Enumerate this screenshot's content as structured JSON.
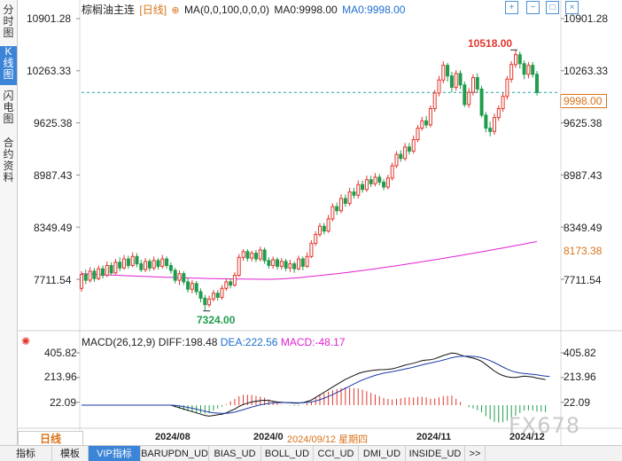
{
  "left_tabs": [
    {
      "label": "分时图",
      "active": false
    },
    {
      "label": "K线图",
      "active": true
    },
    {
      "label": "闪电图",
      "active": false
    },
    {
      "label": "合约资料",
      "active": false
    }
  ],
  "legend": {
    "title": "棕榈油主连",
    "period_tag": "[日线]",
    "ma_label": "MA(0,0,100,0,0,0)",
    "ma0_1": "MA0:9998.00",
    "ma0_2": "MA0:9998.00"
  },
  "top_icons": [
    "zoom-in-icon",
    "zoom-out-icon",
    "fullscreen-icon",
    "close-icon"
  ],
  "price_axis_left": [
    "10901.28",
    "10263.33",
    "9625.38",
    "8987.43",
    "8349.49",
    "7711.54"
  ],
  "price_axis_right": [
    "10901.28",
    "10263.33",
    "9625.38",
    "8987.43",
    "8349.49",
    "7711.54"
  ],
  "price_tags": {
    "last": "9998.00",
    "ma": "8173.38"
  },
  "annotations": {
    "high": "10518.00",
    "low": "7324.00"
  },
  "macd": {
    "title": "MACD(26,12,9)",
    "diff": "DIFF:198.48",
    "dea": "DEA:222.56",
    "macd": "MACD:-48.17",
    "axis": [
      "405.82",
      "213.96",
      "22.09"
    ]
  },
  "date_axis": {
    "labels": [
      "2024/08",
      "2024/0",
      "2024/11",
      "2024/12"
    ],
    "crosshair": "2024/09/12 星期四"
  },
  "period_button": "日线",
  "bottom_tabs": [
    "指标",
    "模板",
    "VIP指标",
    "BARUPDN_UD",
    "BIAS_UD",
    "BOLL_UD",
    "CCI_UD",
    "DMI_UD",
    "INSIDE_UD",
    ">>"
  ],
  "watermark": "FX678",
  "colors": {
    "up": "#e2352b",
    "down": "#1f9d4c",
    "ma": "#e020d0",
    "diff": "#111111",
    "dea": "#1a3aa8",
    "accent": "#3c84d8",
    "last_line": "#1fa0a8"
  },
  "chart_data": {
    "type": "candlestick",
    "title": "棕榈油主连 [日线]",
    "ylim": [
      7324,
      10901.28
    ],
    "price_ticks": [
      10901.28,
      10263.33,
      9625.38,
      8987.43,
      8349.49,
      7711.54
    ],
    "high": 10518,
    "low": 7324,
    "last": 9998,
    "ma_current": 8173.38,
    "x_labels": [
      "2024/08",
      "2024/0",
      "2024/11",
      "2024/12"
    ],
    "candles": [
      {
        "o": 7600,
        "c": 7770,
        "h": 7810,
        "l": 7560
      },
      {
        "o": 7770,
        "c": 7700,
        "h": 7830,
        "l": 7650
      },
      {
        "o": 7700,
        "c": 7810,
        "h": 7860,
        "l": 7670
      },
      {
        "o": 7810,
        "c": 7720,
        "h": 7850,
        "l": 7680
      },
      {
        "o": 7720,
        "c": 7840,
        "h": 7880,
        "l": 7700
      },
      {
        "o": 7840,
        "c": 7760,
        "h": 7880,
        "l": 7720
      },
      {
        "o": 7760,
        "c": 7880,
        "h": 7930,
        "l": 7740
      },
      {
        "o": 7880,
        "c": 7790,
        "h": 7920,
        "l": 7760
      },
      {
        "o": 7790,
        "c": 7920,
        "h": 7960,
        "l": 7770
      },
      {
        "o": 7920,
        "c": 7850,
        "h": 7980,
        "l": 7810
      },
      {
        "o": 7850,
        "c": 7960,
        "h": 8010,
        "l": 7830
      },
      {
        "o": 7960,
        "c": 7880,
        "h": 8000,
        "l": 7840
      },
      {
        "o": 7880,
        "c": 7990,
        "h": 8040,
        "l": 7860
      },
      {
        "o": 7990,
        "c": 7900,
        "h": 8030,
        "l": 7860
      },
      {
        "o": 7900,
        "c": 7830,
        "h": 7950,
        "l": 7800
      },
      {
        "o": 7830,
        "c": 7930,
        "h": 7970,
        "l": 7800
      },
      {
        "o": 7930,
        "c": 7850,
        "h": 7960,
        "l": 7810
      },
      {
        "o": 7850,
        "c": 7940,
        "h": 7990,
        "l": 7820
      },
      {
        "o": 7940,
        "c": 7870,
        "h": 7970,
        "l": 7830
      },
      {
        "o": 7870,
        "c": 7960,
        "h": 8010,
        "l": 7840
      },
      {
        "o": 7960,
        "c": 7880,
        "h": 7990,
        "l": 7840
      },
      {
        "o": 7880,
        "c": 7820,
        "h": 7920,
        "l": 7780
      },
      {
        "o": 7820,
        "c": 7700,
        "h": 7850,
        "l": 7660
      },
      {
        "o": 7700,
        "c": 7780,
        "h": 7820,
        "l": 7640
      },
      {
        "o": 7780,
        "c": 7680,
        "h": 7810,
        "l": 7640
      },
      {
        "o": 7680,
        "c": 7590,
        "h": 7720,
        "l": 7550
      },
      {
        "o": 7590,
        "c": 7660,
        "h": 7700,
        "l": 7540
      },
      {
        "o": 7660,
        "c": 7560,
        "h": 7690,
        "l": 7520
      },
      {
        "o": 7560,
        "c": 7480,
        "h": 7600,
        "l": 7430
      },
      {
        "o": 7480,
        "c": 7400,
        "h": 7520,
        "l": 7324
      },
      {
        "o": 7400,
        "c": 7470,
        "h": 7510,
        "l": 7370
      },
      {
        "o": 7470,
        "c": 7540,
        "h": 7580,
        "l": 7440
      },
      {
        "o": 7540,
        "c": 7490,
        "h": 7580,
        "l": 7450
      },
      {
        "o": 7490,
        "c": 7600,
        "h": 7640,
        "l": 7460
      },
      {
        "o": 7600,
        "c": 7680,
        "h": 7720,
        "l": 7570
      },
      {
        "o": 7680,
        "c": 7640,
        "h": 7720,
        "l": 7600
      },
      {
        "o": 7640,
        "c": 7760,
        "h": 7800,
        "l": 7620
      },
      {
        "o": 7760,
        "c": 7980,
        "h": 8020,
        "l": 7740
      },
      {
        "o": 7980,
        "c": 8050,
        "h": 8080,
        "l": 7940
      },
      {
        "o": 8050,
        "c": 7970,
        "h": 8080,
        "l": 7930
      },
      {
        "o": 7970,
        "c": 8030,
        "h": 8060,
        "l": 7930
      },
      {
        "o": 8030,
        "c": 7960,
        "h": 8070,
        "l": 7920
      },
      {
        "o": 7960,
        "c": 8070,
        "h": 8110,
        "l": 7930
      },
      {
        "o": 8070,
        "c": 7940,
        "h": 8100,
        "l": 7900
      },
      {
        "o": 7940,
        "c": 7880,
        "h": 7980,
        "l": 7840
      },
      {
        "o": 7880,
        "c": 7950,
        "h": 7990,
        "l": 7840
      },
      {
        "o": 7950,
        "c": 7870,
        "h": 7980,
        "l": 7830
      },
      {
        "o": 7870,
        "c": 7930,
        "h": 7970,
        "l": 7830
      },
      {
        "o": 7930,
        "c": 7850,
        "h": 7960,
        "l": 7810
      },
      {
        "o": 7850,
        "c": 7900,
        "h": 7950,
        "l": 7800
      },
      {
        "o": 7900,
        "c": 7840,
        "h": 7930,
        "l": 7790
      },
      {
        "o": 7840,
        "c": 7960,
        "h": 8000,
        "l": 7820
      },
      {
        "o": 7960,
        "c": 7870,
        "h": 7990,
        "l": 7820
      },
      {
        "o": 7870,
        "c": 7990,
        "h": 8040,
        "l": 7850
      },
      {
        "o": 7990,
        "c": 8150,
        "h": 8190,
        "l": 7970
      },
      {
        "o": 8150,
        "c": 8260,
        "h": 8300,
        "l": 8120
      },
      {
        "o": 8260,
        "c": 8360,
        "h": 8400,
        "l": 8230
      },
      {
        "o": 8360,
        "c": 8300,
        "h": 8400,
        "l": 8260
      },
      {
        "o": 8300,
        "c": 8450,
        "h": 8500,
        "l": 8280
      },
      {
        "o": 8450,
        "c": 8600,
        "h": 8640,
        "l": 8420
      },
      {
        "o": 8600,
        "c": 8550,
        "h": 8650,
        "l": 8500
      },
      {
        "o": 8550,
        "c": 8700,
        "h": 8750,
        "l": 8520
      },
      {
        "o": 8700,
        "c": 8640,
        "h": 8750,
        "l": 8600
      },
      {
        "o": 8640,
        "c": 8780,
        "h": 8830,
        "l": 8610
      },
      {
        "o": 8780,
        "c": 8740,
        "h": 8830,
        "l": 8700
      },
      {
        "o": 8740,
        "c": 8870,
        "h": 8920,
        "l": 8700
      },
      {
        "o": 8870,
        "c": 8810,
        "h": 8920,
        "l": 8770
      },
      {
        "o": 8810,
        "c": 8930,
        "h": 8980,
        "l": 8780
      },
      {
        "o": 8930,
        "c": 8880,
        "h": 8980,
        "l": 8840
      },
      {
        "o": 8880,
        "c": 8960,
        "h": 9010,
        "l": 8850
      },
      {
        "o": 8960,
        "c": 8900,
        "h": 9000,
        "l": 8860
      },
      {
        "o": 8900,
        "c": 8840,
        "h": 8940,
        "l": 8800
      },
      {
        "o": 8840,
        "c": 8950,
        "h": 8990,
        "l": 8810
      },
      {
        "o": 8950,
        "c": 9100,
        "h": 9140,
        "l": 8920
      },
      {
        "o": 9100,
        "c": 9240,
        "h": 9280,
        "l": 9070
      },
      {
        "o": 9240,
        "c": 9190,
        "h": 9290,
        "l": 9150
      },
      {
        "o": 9190,
        "c": 9330,
        "h": 9380,
        "l": 9160
      },
      {
        "o": 9330,
        "c": 9280,
        "h": 9380,
        "l": 9240
      },
      {
        "o": 9280,
        "c": 9420,
        "h": 9470,
        "l": 9250
      },
      {
        "o": 9420,
        "c": 9560,
        "h": 9600,
        "l": 9390
      },
      {
        "o": 9560,
        "c": 9650,
        "h": 9700,
        "l": 9530
      },
      {
        "o": 9650,
        "c": 9600,
        "h": 9710,
        "l": 9560
      },
      {
        "o": 9600,
        "c": 9800,
        "h": 9840,
        "l": 9570
      },
      {
        "o": 9800,
        "c": 9990,
        "h": 10030,
        "l": 9760
      },
      {
        "o": 9990,
        "c": 10150,
        "h": 10200,
        "l": 9950
      },
      {
        "o": 10150,
        "c": 10330,
        "h": 10380,
        "l": 10110
      },
      {
        "o": 10330,
        "c": 10200,
        "h": 10360,
        "l": 10130
      },
      {
        "o": 10200,
        "c": 10060,
        "h": 10250,
        "l": 10000
      },
      {
        "o": 10060,
        "c": 10230,
        "h": 10270,
        "l": 10020
      },
      {
        "o": 10230,
        "c": 10090,
        "h": 10270,
        "l": 10040
      },
      {
        "o": 10090,
        "c": 9850,
        "h": 10130,
        "l": 9820
      },
      {
        "o": 9850,
        "c": 10000,
        "h": 10050,
        "l": 9810
      },
      {
        "o": 10000,
        "c": 10180,
        "h": 10220,
        "l": 9960
      },
      {
        "o": 10180,
        "c": 10040,
        "h": 10230,
        "l": 9990
      },
      {
        "o": 10040,
        "c": 9720,
        "h": 10080,
        "l": 9690
      },
      {
        "o": 9720,
        "c": 9560,
        "h": 9760,
        "l": 9510
      },
      {
        "o": 9560,
        "c": 9520,
        "h": 9640,
        "l": 9460
      },
      {
        "o": 9520,
        "c": 9690,
        "h": 9740,
        "l": 9480
      },
      {
        "o": 9690,
        "c": 9800,
        "h": 9840,
        "l": 9650
      },
      {
        "o": 9800,
        "c": 9950,
        "h": 9990,
        "l": 9760
      },
      {
        "o": 9950,
        "c": 10160,
        "h": 10200,
        "l": 9910
      },
      {
        "o": 10160,
        "c": 10340,
        "h": 10380,
        "l": 10120
      },
      {
        "o": 10340,
        "c": 10460,
        "h": 10518,
        "l": 10300
      },
      {
        "o": 10460,
        "c": 10350,
        "h": 10500,
        "l": 10290
      },
      {
        "o": 10350,
        "c": 10220,
        "h": 10390,
        "l": 10160
      },
      {
        "o": 10220,
        "c": 10330,
        "h": 10370,
        "l": 10170
      },
      {
        "o": 10330,
        "c": 10220,
        "h": 10370,
        "l": 10180
      },
      {
        "o": 10220,
        "c": 9998,
        "h": 10260,
        "l": 9960
      }
    ],
    "ma_line": {
      "name": "MA0",
      "start": 7780,
      "min": 7711.54,
      "end": 8173.38
    },
    "macd_series": {
      "ylim": [
        -120,
        405.82
      ],
      "diff": [
        0,
        0,
        0,
        0,
        0,
        0,
        0,
        0,
        0,
        0,
        0,
        0,
        0,
        0,
        0,
        0,
        0,
        0,
        0,
        0,
        0,
        0,
        -10,
        -20,
        -30,
        -40,
        -50,
        -60,
        -70,
        -80,
        -85,
        -80,
        -75,
        -70,
        -60,
        -45,
        -30,
        -10,
        5,
        15,
        25,
        30,
        35,
        38,
        36,
        30,
        25,
        22,
        20,
        18,
        16,
        15,
        20,
        28,
        40,
        60,
        80,
        100,
        120,
        140,
        160,
        180,
        200,
        215,
        230,
        245,
        255,
        262,
        268,
        272,
        275,
        276,
        278,
        282,
        290,
        300,
        310,
        318,
        325,
        335,
        345,
        350,
        352,
        360,
        372,
        385,
        395,
        405,
        400,
        390,
        380,
        372,
        365,
        355,
        340,
        315,
        290,
        265,
        245,
        230,
        220,
        215,
        215,
        220,
        225,
        222,
        218,
        210,
        205,
        198
      ],
      "dea": [
        0,
        0,
        0,
        0,
        0,
        0,
        0,
        0,
        0,
        0,
        0,
        0,
        0,
        0,
        0,
        0,
        0,
        0,
        0,
        0,
        0,
        0,
        -2,
        -6,
        -11,
        -17,
        -24,
        -31,
        -39,
        -47,
        -54,
        -59,
        -62,
        -64,
        -63,
        -60,
        -54,
        -45,
        -35,
        -25,
        -15,
        -6,
        2,
        9,
        14,
        17,
        19,
        20,
        20,
        20,
        19,
        18,
        19,
        21,
        25,
        32,
        42,
        54,
        67,
        82,
        98,
        114,
        131,
        147,
        164,
        180,
        195,
        208,
        220,
        231,
        240,
        248,
        254,
        260,
        266,
        273,
        280,
        287,
        295,
        303,
        312,
        320,
        327,
        334,
        342,
        350,
        359,
        368,
        375,
        378,
        380,
        380,
        378,
        375,
        368,
        358,
        345,
        330,
        313,
        296,
        280,
        266,
        256,
        250,
        246,
        242,
        239,
        235,
        230,
        225,
        222.56
      ]
    }
  }
}
